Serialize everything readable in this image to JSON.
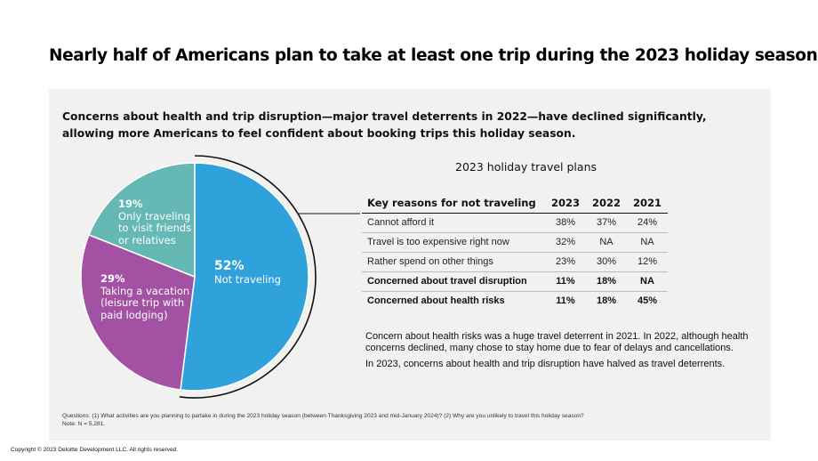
{
  "title": "Nearly half of Americans plan to take at least one trip during the 2023 holiday season",
  "subtitle": "Concerns about health and trip disruption—major travel deterrents in 2022—have declined significantly, allowing more Americans to feel confident about booking trips this holiday season.",
  "colors": {
    "not_traveling": "#2fa1db",
    "vacation": "#a351a3",
    "friends": "#66b8b4",
    "panel": "#f1f1f0"
  },
  "chart_data": [
    {
      "type": "pie",
      "title": "",
      "slices": [
        {
          "pct_label": "52%",
          "label": "Not traveling",
          "value": 52,
          "color": "#2fa1db"
        },
        {
          "pct_label": "29%",
          "label": "Taking a vacation (leisure trip with paid lodging)",
          "lines": [
            "Taking a vacation",
            "(leisure trip with",
            "paid lodging)"
          ],
          "value": 29,
          "color": "#a351a3"
        },
        {
          "pct_label": "19%",
          "label": "Only traveling to visit friends or relatives",
          "lines": [
            "Only traveling",
            "to visit friends",
            "or relatives"
          ],
          "value": 19,
          "color": "#66b8b4"
        }
      ]
    },
    {
      "type": "table",
      "title": "2023 holiday travel plans",
      "columns": [
        "Key reasons for not traveling",
        "2023",
        "2022",
        "2021"
      ],
      "rows": [
        {
          "reason": "Cannot afford it",
          "values": [
            "38%",
            "37%",
            "24%"
          ],
          "bold": false
        },
        {
          "reason": "Travel is too expensive right now",
          "values": [
            "32%",
            "NA",
            "NA"
          ],
          "bold": false
        },
        {
          "reason": "Rather spend on other things",
          "values": [
            "23%",
            "30%",
            "12%"
          ],
          "bold": false
        },
        {
          "reason": "Concerned about travel disruption",
          "values": [
            "11%",
            "18%",
            "NA"
          ],
          "bold": true
        },
        {
          "reason": "Concerned about health risks",
          "values": [
            "11%",
            "18%",
            "45%"
          ],
          "bold": true
        }
      ]
    }
  ],
  "notes": [
    "Concern about health risks was a huge travel deterrent in 2021. In 2022, although health concerns declined, many chose to stay home due to fear of delays and cancellations.",
    "In 2023, concerns about health and trip disruption have halved as travel deterrents."
  ],
  "footnote": {
    "questions": "Questions: (1) What activities are you planning to partake in during the 2023 holiday season (between Thanksgiving 2023 and mid-January 2024)? (2) Why are you unlikely to travel this holiday season?",
    "sample": "Note: N = 5,281."
  },
  "copyright": "Copyright © 2023 Deloitte Development LLC. All rights reserved."
}
